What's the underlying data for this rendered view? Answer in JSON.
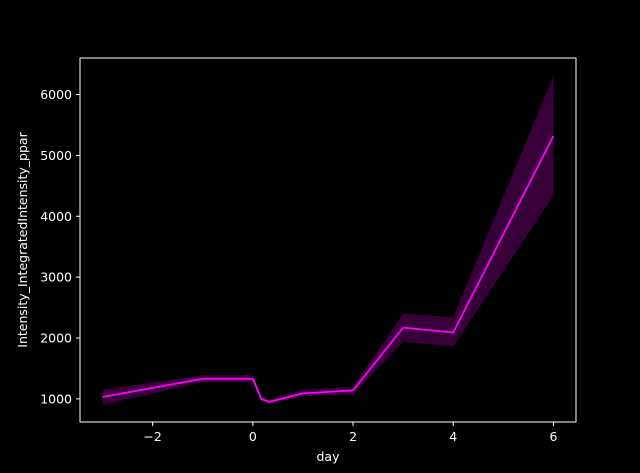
{
  "chart_data": {
    "type": "line",
    "title": "",
    "xlabel": "day",
    "ylabel": "Intensity_IntegratedIntensity_ppar",
    "xlim": [
      -3.45,
      6.45
    ],
    "ylim": [
      620,
      6600
    ],
    "xticks": [
      -2,
      0,
      2,
      4,
      6
    ],
    "yticks": [
      1000,
      2000,
      3000,
      4000,
      5000,
      6000
    ],
    "grid": false,
    "legend": "none",
    "colors": {
      "background": "#000000",
      "axes": "#ffffff",
      "line": "#ff00ff",
      "band": "#ff00ff"
    },
    "series": [
      {
        "x": [
          -3,
          -1,
          0,
          0.17,
          0.33,
          1,
          2,
          3,
          4,
          6
        ],
        "y": [
          1030,
          1330,
          1330,
          1000,
          950,
          1090,
          1140,
          2170,
          2090,
          5320
        ],
        "lower": [
          900,
          1270,
          1270,
          960,
          920,
          1040,
          1070,
          1940,
          1860,
          4340
        ],
        "upper": [
          1150,
          1390,
          1390,
          1040,
          990,
          1150,
          1200,
          2400,
          2340,
          6310
        ]
      }
    ]
  }
}
